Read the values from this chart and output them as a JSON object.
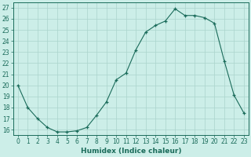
{
  "xlabel": "Humidex (Indice chaleur)",
  "ylabel": "",
  "x": [
    0,
    1,
    2,
    3,
    4,
    5,
    6,
    7,
    8,
    9,
    10,
    11,
    12,
    13,
    14,
    15,
    16,
    17,
    18,
    19,
    20,
    21,
    22,
    23
  ],
  "y": [
    20.0,
    18.0,
    17.0,
    16.2,
    15.8,
    15.8,
    15.9,
    16.2,
    17.3,
    18.5,
    20.5,
    21.1,
    23.2,
    24.8,
    25.4,
    25.8,
    26.9,
    26.3,
    26.3,
    26.1,
    25.6,
    22.2,
    19.1,
    17.5
  ],
  "ylim": [
    15.5,
    27.5
  ],
  "xlim": [
    -0.5,
    23.5
  ],
  "yticks": [
    16,
    17,
    18,
    19,
    20,
    21,
    22,
    23,
    24,
    25,
    26,
    27
  ],
  "xticks": [
    0,
    1,
    2,
    3,
    4,
    5,
    6,
    7,
    8,
    9,
    10,
    11,
    12,
    13,
    14,
    15,
    16,
    17,
    18,
    19,
    20,
    21,
    22,
    23
  ],
  "line_color": "#1a6b5a",
  "marker_color": "#1a6b5a",
  "bg_color": "#cceee8",
  "grid_color": "#aad4cc",
  "axis_color": "#1a6b5a",
  "tick_color": "#1a6b5a",
  "label_color": "#1a6b5a",
  "font_size_label": 6.5,
  "font_size_tick": 5.5
}
